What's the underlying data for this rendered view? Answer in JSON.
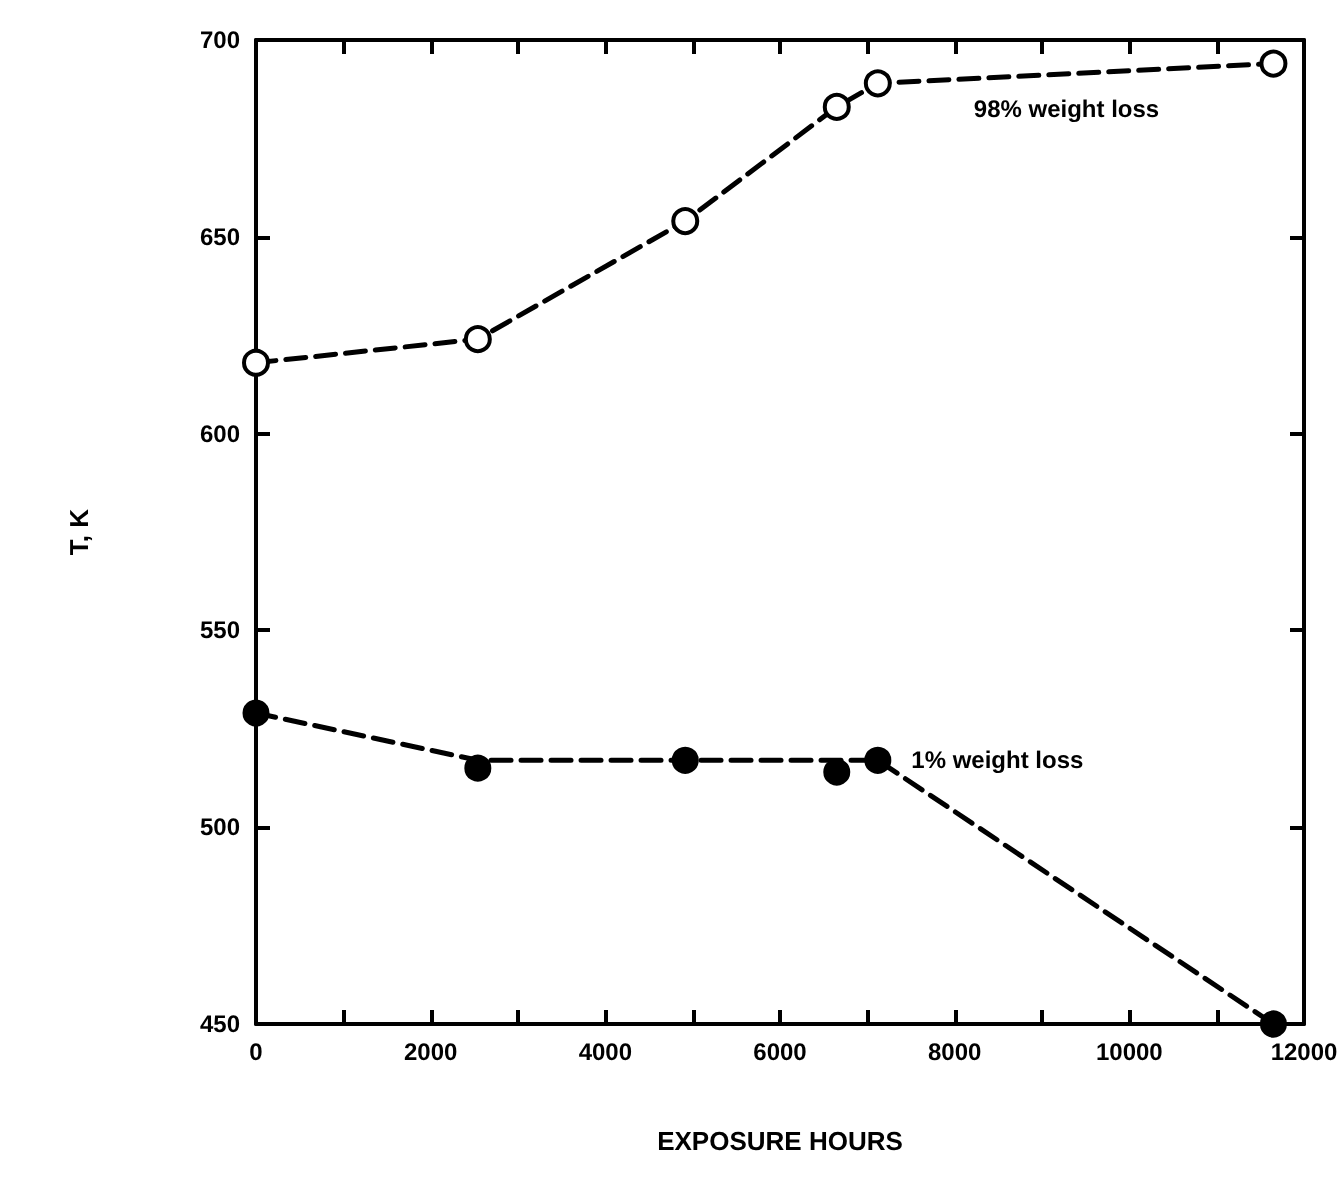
{
  "chart_data": {
    "type": "scatter",
    "xlabel": "EXPOSURE HOURS",
    "ylabel": "T, K",
    "xlim": [
      0,
      12000
    ],
    "ylim": [
      450,
      700
    ],
    "xticks": [
      0,
      {
        "value": 1000,
        "label": null
      },
      2000,
      {
        "value": 3000,
        "label": null
      },
      4000,
      {
        "value": 5000,
        "label": null
      },
      6000,
      {
        "value": 7000,
        "label": null
      },
      8000,
      {
        "value": 9000,
        "label": null
      },
      10000,
      {
        "value": 11000,
        "label": null
      },
      12000
    ],
    "yticks": [
      450,
      500,
      550,
      600,
      650,
      700
    ],
    "grid": false,
    "legend": false,
    "series": [
      {
        "type": "line",
        "name": "98% weight loss",
        "color": "#000000",
        "marker": "circle",
        "line_style": "dashed",
        "x": [
          0,
          2540,
          4915,
          6650,
          7120,
          11650
        ],
        "values": [
          618,
          624,
          654,
          683,
          689,
          694
        ]
      },
      {
        "type": "scatter",
        "name": "1% weight loss",
        "color": "#000000",
        "marker": "circle",
        "x": [
          0,
          2540,
          4915,
          6650,
          7120,
          11650
        ],
        "values": [
          529,
          515,
          517,
          514,
          517,
          450
        ]
      },
      {
        "type": "line",
        "color": "#000000",
        "marker": "none",
        "line_style": "dashed",
        "x": [
          0,
          2540,
          7120,
          11650
        ],
        "values": [
          529,
          517,
          517,
          450
        ]
      }
    ]
  }
}
